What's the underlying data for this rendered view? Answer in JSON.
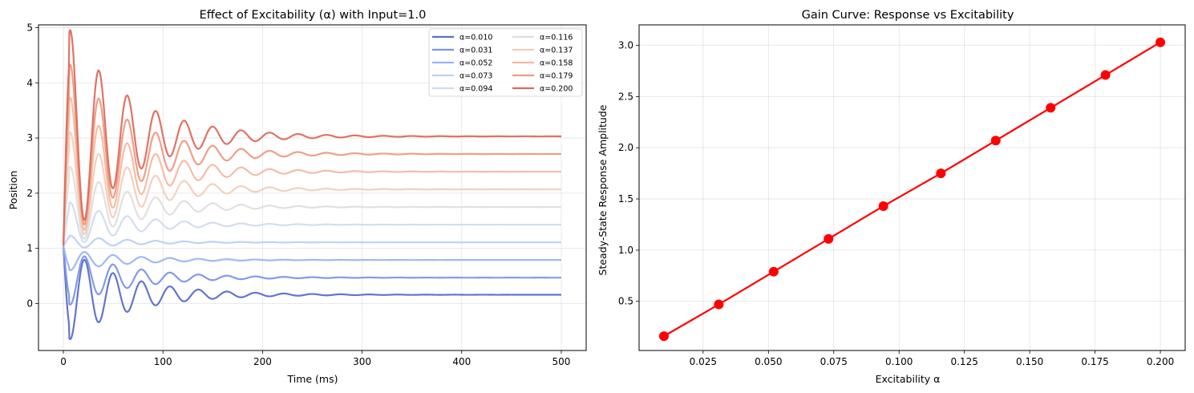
{
  "chart_data": [
    {
      "type": "line",
      "title": "Effect of Excitability (α) with Input=1.0",
      "xlabel": "Time (ms)",
      "ylabel": "Position",
      "xlim": [
        -25,
        525
      ],
      "ylim": [
        -0.85,
        5.05
      ],
      "xticks": [
        0,
        100,
        200,
        300,
        400,
        500
      ],
      "yticks": [
        0,
        1,
        2,
        3,
        4,
        5
      ],
      "grid": true,
      "legend": "upper-right, 2 columns",
      "series": [
        {
          "name": "α=0.010",
          "color": "#5b6ec9",
          "steady": 0.16,
          "peak": -0.58
        },
        {
          "name": "α=0.031",
          "color": "#7b95e6",
          "steady": 0.47,
          "peak": 0.02
        },
        {
          "name": "α=0.052",
          "color": "#9bb4f6",
          "steady": 0.79,
          "peak": 0.62
        },
        {
          "name": "α=0.073",
          "color": "#bcd0f8",
          "steady": 1.11,
          "peak": 1.22
        },
        {
          "name": "α=0.094",
          "color": "#d0dcee",
          "steady": 1.43,
          "peak": 1.8
        },
        {
          "name": "α=0.116",
          "color": "#e0dedd",
          "steady": 1.75,
          "peak": 2.42
        },
        {
          "name": "α=0.137",
          "color": "#f2cdbb",
          "steady": 2.07,
          "peak": 3.02
        },
        {
          "name": "α=0.158",
          "color": "#f3b9a0",
          "steady": 2.39,
          "peak": 3.62
        },
        {
          "name": "α=0.179",
          "color": "#ee9a80",
          "steady": 2.71,
          "peak": 4.2
        },
        {
          "name": "α=0.200",
          "color": "#dd6b5c",
          "steady": 3.03,
          "peak": 4.8
        }
      ]
    },
    {
      "type": "line",
      "title": "Gain Curve: Response vs Excitability",
      "xlabel": "Excitability α",
      "ylabel": "Steady-State Response Amplitude",
      "xlim": [
        0.0005,
        0.2095
      ],
      "ylim": [
        0.02,
        3.2
      ],
      "xticks": [
        0.025,
        0.05,
        0.075,
        0.1,
        0.125,
        0.15,
        0.175,
        0.2
      ],
      "xtick_labels": [
        "0.025",
        "0.050",
        "0.075",
        "0.100",
        "0.125",
        "0.150",
        "0.175",
        "0.200"
      ],
      "yticks": [
        0.5,
        1.0,
        1.5,
        2.0,
        2.5,
        3.0
      ],
      "ytick_labels": [
        "0.5",
        "1.0",
        "1.5",
        "2.0",
        "2.5",
        "3.0"
      ],
      "grid": true,
      "color": "#ff0000",
      "x": [
        0.01,
        0.031,
        0.052,
        0.073,
        0.094,
        0.116,
        0.137,
        0.158,
        0.179,
        0.2
      ],
      "y": [
        0.16,
        0.47,
        0.79,
        1.11,
        1.43,
        1.75,
        2.07,
        2.39,
        2.71,
        3.03
      ]
    }
  ]
}
